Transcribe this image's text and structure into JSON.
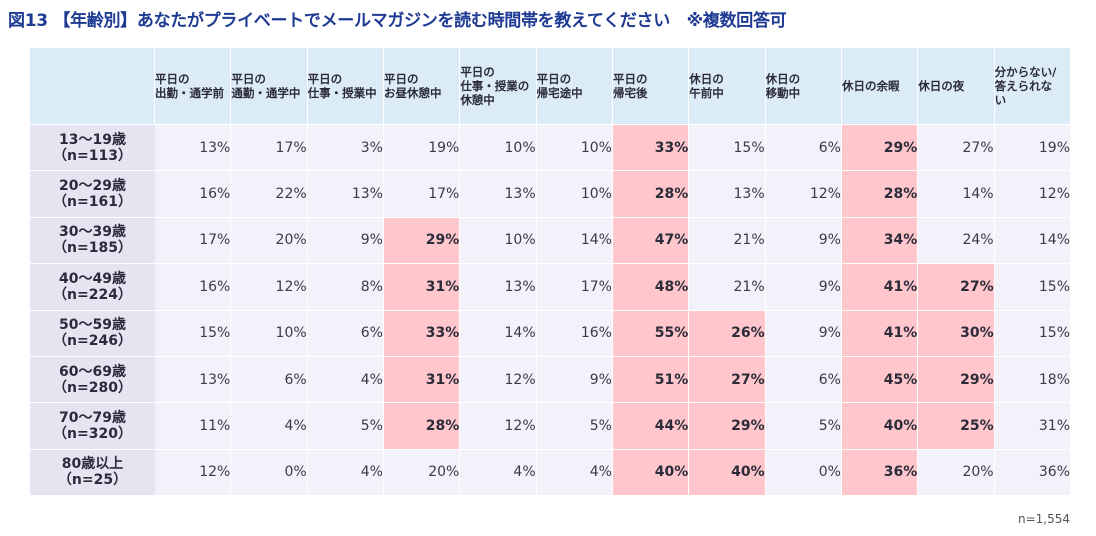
{
  "title": "図13 【年齢別】あなたがプライベートでメールマガジンを読む時間帯を教えてください　※複数回答可",
  "sample_note": "n=1,554",
  "colors": {
    "title": "#1f3a93",
    "header_bg": "#dcecf7",
    "row_label_bg": "#e6e4f1",
    "cell_bg": "#f3f1f9",
    "highlight": "#ffc7cc"
  },
  "chart_data": {
    "type": "table",
    "title": "図13 【年齢別】あなたがプライベートでメールマガジンを読む時間帯を教えてください　※複数回答可",
    "columns": [
      "平日の\n出勤・通学前",
      "平日の\n通勤・通学中",
      "平日の\n仕事・授業中",
      "平日の\nお昼休憩中",
      "平日の\n仕事・授業の\n休憩中",
      "平日の\n帰宅途中",
      "平日の\n帰宅後",
      "休日の\n午前中",
      "休日の\n移動中",
      "休日の余暇",
      "休日の夜",
      "分からない/\n答えられな\nい"
    ],
    "rows": [
      {
        "label": "13～19歳\n（n=113）",
        "values": [
          "13%",
          "17%",
          "3%",
          "19%",
          "10%",
          "10%",
          "33%",
          "15%",
          "6%",
          "29%",
          "27%",
          "19%"
        ],
        "highlight": [
          6,
          9
        ]
      },
      {
        "label": "20～29歳\n（n=161）",
        "values": [
          "16%",
          "22%",
          "13%",
          "17%",
          "13%",
          "10%",
          "28%",
          "13%",
          "12%",
          "28%",
          "14%",
          "12%"
        ],
        "highlight": [
          6,
          9
        ]
      },
      {
        "label": "30～39歳\n（n=185）",
        "values": [
          "17%",
          "20%",
          "9%",
          "29%",
          "10%",
          "14%",
          "47%",
          "21%",
          "9%",
          "34%",
          "24%",
          "14%"
        ],
        "highlight": [
          3,
          6,
          9
        ]
      },
      {
        "label": "40～49歳\n（n=224）",
        "values": [
          "16%",
          "12%",
          "8%",
          "31%",
          "13%",
          "17%",
          "48%",
          "21%",
          "9%",
          "41%",
          "27%",
          "15%"
        ],
        "highlight": [
          3,
          6,
          9,
          10
        ]
      },
      {
        "label": "50～59歳\n（n=246）",
        "values": [
          "15%",
          "10%",
          "6%",
          "33%",
          "14%",
          "16%",
          "55%",
          "26%",
          "9%",
          "41%",
          "30%",
          "15%"
        ],
        "highlight": [
          3,
          6,
          7,
          9,
          10
        ]
      },
      {
        "label": "60～69歳\n（n=280）",
        "values": [
          "13%",
          "6%",
          "4%",
          "31%",
          "12%",
          "9%",
          "51%",
          "27%",
          "6%",
          "45%",
          "29%",
          "18%"
        ],
        "highlight": [
          3,
          6,
          7,
          9,
          10
        ]
      },
      {
        "label": "70～79歳\n（n=320）",
        "values": [
          "11%",
          "4%",
          "5%",
          "28%",
          "12%",
          "5%",
          "44%",
          "29%",
          "5%",
          "40%",
          "25%",
          "31%"
        ],
        "highlight": [
          3,
          6,
          7,
          9,
          10
        ]
      },
      {
        "label": "80歳以上\n（n=25）",
        "values": [
          "12%",
          "0%",
          "4%",
          "20%",
          "4%",
          "4%",
          "40%",
          "40%",
          "0%",
          "36%",
          "20%",
          "36%"
        ],
        "highlight": [
          6,
          7,
          9
        ]
      }
    ]
  }
}
